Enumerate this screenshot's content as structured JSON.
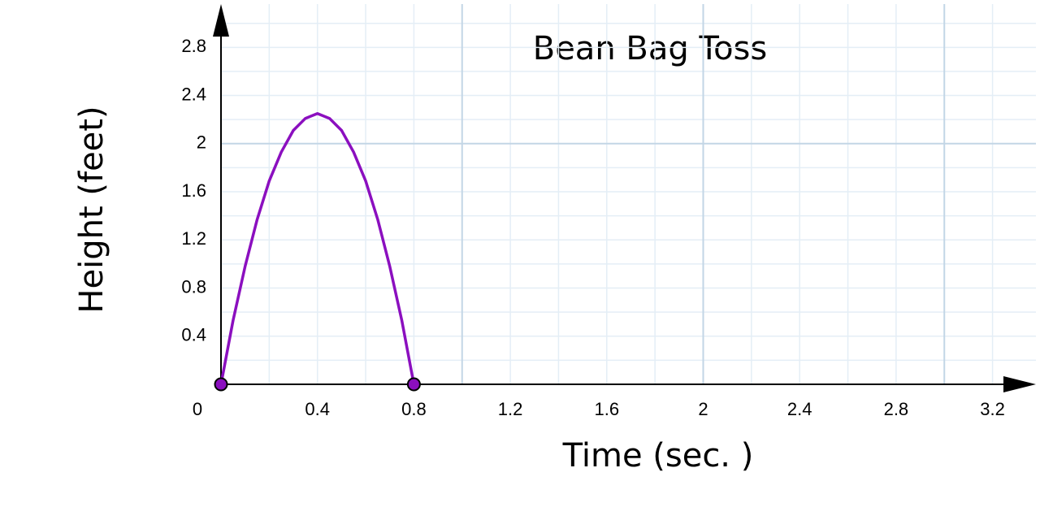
{
  "chart_data": {
    "type": "line",
    "title": "Bean Bag Toss",
    "x_label": "Time (sec. )",
    "y_label": "Height (feet)",
    "x": [
      0,
      0.05,
      0.1,
      0.15,
      0.2,
      0.25,
      0.3,
      0.35,
      0.4,
      0.45,
      0.5,
      0.55,
      0.6,
      0.65,
      0.7,
      0.75,
      0.8
    ],
    "series": [
      {
        "color": "#8b0fbf",
        "values": [
          0,
          0.53,
          0.98,
          1.37,
          1.69,
          1.93,
          2.11,
          2.21,
          2.25,
          2.21,
          2.11,
          1.93,
          1.69,
          1.37,
          0.98,
          0.53,
          0
        ]
      }
    ],
    "points": {
      "x": [
        0,
        0.8
      ],
      "values": [
        0,
        0
      ],
      "color": "#8b0fbf"
    },
    "xlim": [
      0,
      3.38
    ],
    "ylim": [
      0,
      3.16
    ],
    "xticks": [
      0,
      0.4,
      0.8,
      1.2,
      1.6,
      2,
      2.4,
      2.8,
      3.2
    ],
    "yticks": [
      0.4,
      0.8,
      1.2,
      1.6,
      2,
      2.4,
      2.8
    ],
    "grid": true,
    "grid_minor_step": 0.2,
    "grid_major_x": [
      1,
      2,
      3
    ],
    "grid_major_y": [
      2
    ]
  }
}
